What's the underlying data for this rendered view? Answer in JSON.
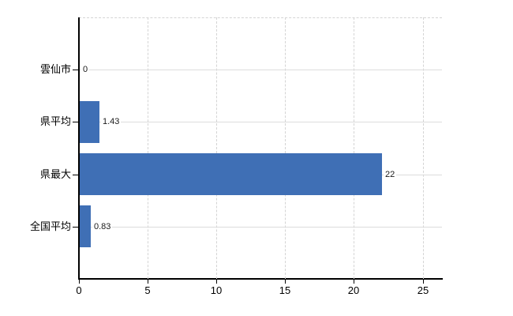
{
  "chart_data": {
    "type": "bar",
    "orientation": "horizontal",
    "title": "",
    "xlabel": "",
    "ylabel": "",
    "categories": [
      "雲仙市",
      "県平均",
      "県最大",
      "全国平均"
    ],
    "values": [
      0,
      1.43,
      22,
      0.83
    ],
    "value_labels": [
      "0",
      "1.43",
      "22",
      "0.83"
    ],
    "xticks": [
      0,
      5,
      10,
      15,
      20,
      25
    ],
    "xlim": [
      0,
      26.4
    ],
    "grid": true,
    "legend": false,
    "colors": {
      "bar": "#3f6fb5",
      "grid": "#d4d4d4",
      "axis": "#000000",
      "text": "#000000",
      "background": "#ffffff"
    }
  }
}
